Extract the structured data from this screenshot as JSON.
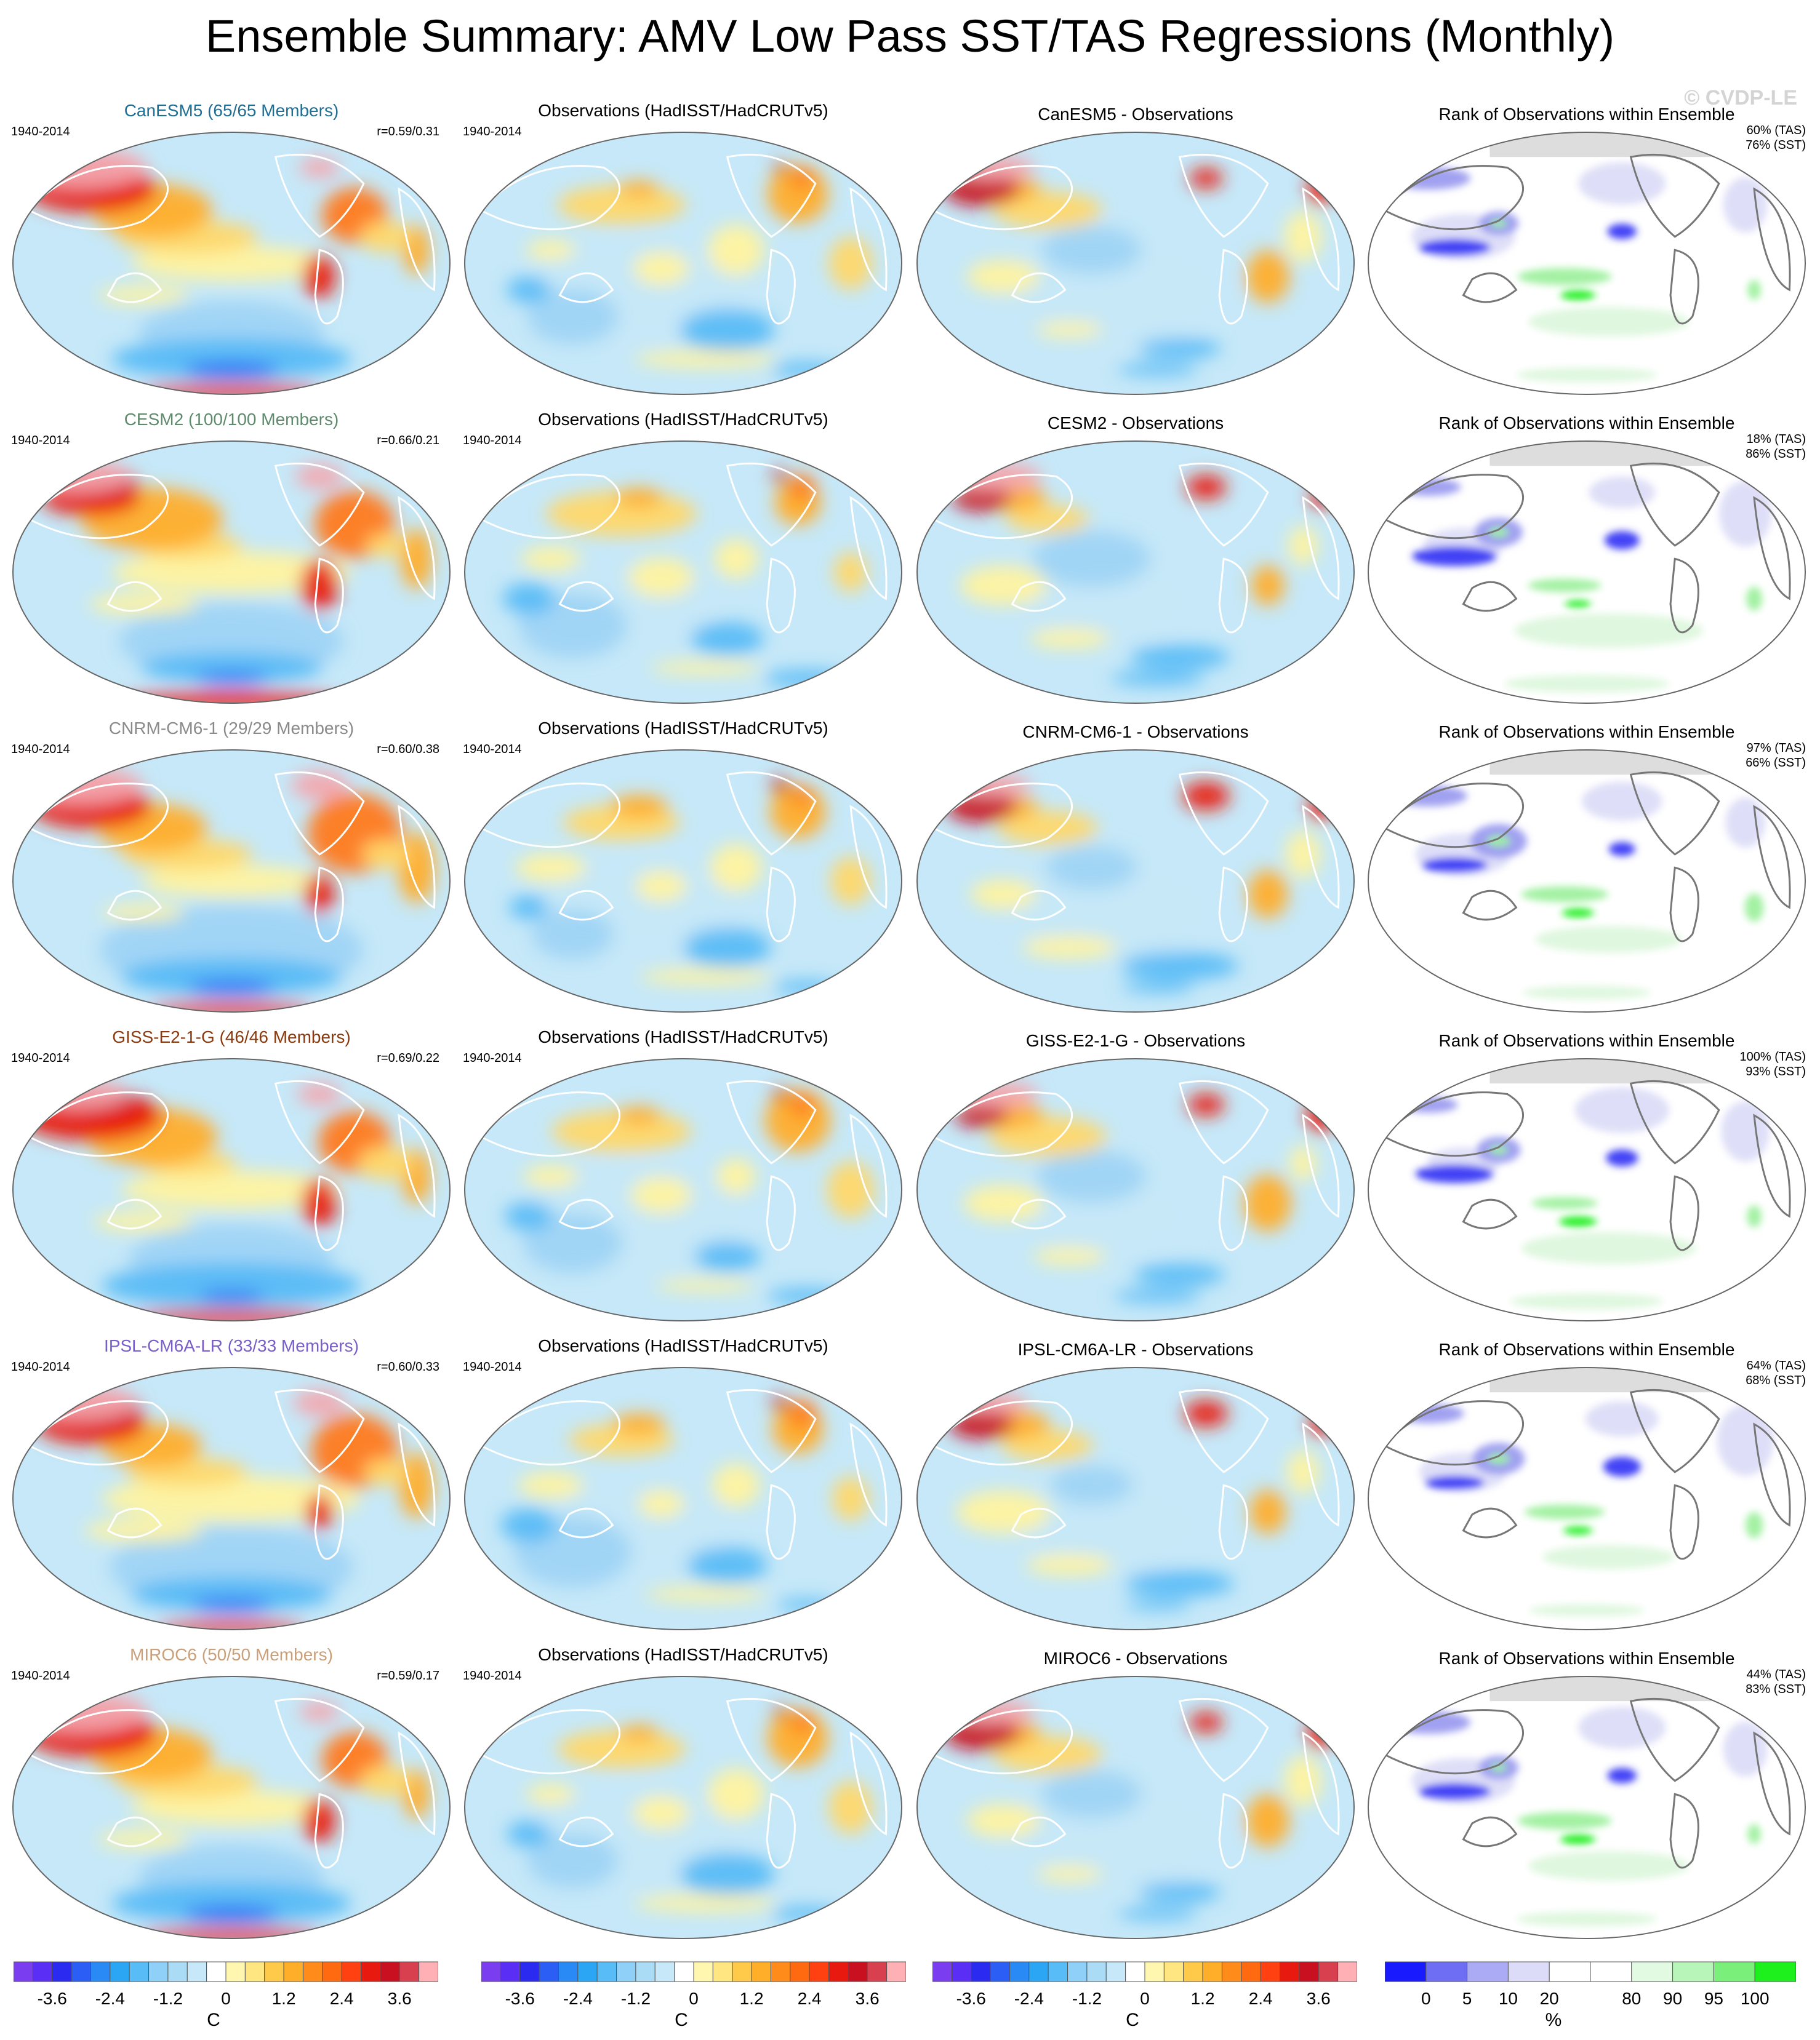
{
  "title": "Ensemble Summary: AMV Low Pass SST/TAS Regressions (Monthly)",
  "watermark": "© CVDP-LE",
  "rows": [
    {
      "model_title": "CanESM5 (65/65 Members)",
      "model_color": "#1f6e94",
      "period": "1940-2014",
      "corr": "r=0.59/0.31",
      "obs_title": "Observations (HadISST/HadCRUTv5)",
      "obs_period": "1940-2014",
      "diff_title": "CanESM5 - Observations",
      "rank_title": "Rank of Observations within Ensemble",
      "rank_tas": "60% (TAS)",
      "rank_sst": "76% (SST)"
    },
    {
      "model_title": "CESM2 (100/100 Members)",
      "model_color": "#5f8a6d",
      "period": "1940-2014",
      "corr": "r=0.66/0.21",
      "obs_title": "Observations (HadISST/HadCRUTv5)",
      "obs_period": "1940-2014",
      "diff_title": "CESM2 - Observations",
      "rank_title": "Rank of Observations within Ensemble",
      "rank_tas": "18% (TAS)",
      "rank_sst": "86% (SST)"
    },
    {
      "model_title": "CNRM-CM6-1 (29/29 Members)",
      "model_color": "#8a8a8a",
      "period": "1940-2014",
      "corr": "r=0.60/0.38",
      "obs_title": "Observations (HadISST/HadCRUTv5)",
      "obs_period": "1940-2014",
      "diff_title": "CNRM-CM6-1 - Observations",
      "rank_title": "Rank of Observations within Ensemble",
      "rank_tas": "97% (TAS)",
      "rank_sst": "66% (SST)"
    },
    {
      "model_title": "GISS-E2-1-G (46/46 Members)",
      "model_color": "#8b3a0e",
      "period": "1940-2014",
      "corr": "r=0.69/0.22",
      "obs_title": "Observations (HadISST/HadCRUTv5)",
      "obs_period": "1940-2014",
      "diff_title": "GISS-E2-1-G - Observations",
      "rank_title": "Rank of Observations within Ensemble",
      "rank_tas": "100% (TAS)",
      "rank_sst": "93% (SST)"
    },
    {
      "model_title": "IPSL-CM6A-LR (33/33 Members)",
      "model_color": "#7a5ec8",
      "period": "1940-2014",
      "corr": "r=0.60/0.33",
      "obs_title": "Observations (HadISST/HadCRUTv5)",
      "obs_period": "1940-2014",
      "diff_title": "IPSL-CM6A-LR - Observations",
      "rank_title": "Rank of Observations within Ensemble",
      "rank_tas": "64% (TAS)",
      "rank_sst": "68% (SST)"
    },
    {
      "model_title": "MIROC6 (50/50 Members)",
      "model_color": "#caa07a",
      "period": "1940-2014",
      "corr": "r=0.59/0.17",
      "obs_title": "Observations (HadISST/HadCRUTv5)",
      "obs_period": "1940-2014",
      "diff_title": "MIROC6 - Observations",
      "rank_title": "Rank of Observations within Ensemble",
      "rank_tas": "44% (TAS)",
      "rank_sst": "83% (SST)"
    }
  ],
  "colorbars": {
    "temp_units": "C",
    "temp_labels": [
      "-3.6",
      "-2.4",
      "-1.2",
      "0",
      "1.2",
      "2.4",
      "3.6"
    ],
    "temp_colors": [
      "#7a3ef0",
      "#5a2ef5",
      "#2a2af0",
      "#2a5ef5",
      "#2a8af5",
      "#2aa6f5",
      "#58bcf7",
      "#8ed0f7",
      "#aadcf5",
      "#c6e8f8",
      "#ffffff",
      "#fff7b0",
      "#ffe680",
      "#ffc94a",
      "#ffae2a",
      "#ff8c1a",
      "#ff6a10",
      "#ff4010",
      "#e81a10",
      "#c81020",
      "#d84050",
      "#ffb0b4"
    ],
    "rank_units": "%",
    "rank_labels": [
      "0",
      "5",
      "10",
      "20",
      "80",
      "90",
      "95",
      "100"
    ],
    "rank_colors": [
      "#1a1aff",
      "#6e6ef5",
      "#aaaaf5",
      "#dcdcf8",
      "#ffffff",
      "#ffffff",
      "#e2fae2",
      "#b8f5b8",
      "#7aef7a",
      "#1ef01e"
    ]
  },
  "chart_data": [
    {
      "type": "heatmap",
      "panel": "model regression",
      "units": "C",
      "color_levels": [
        -3.6,
        -2.4,
        -1.2,
        0,
        1.2,
        2.4,
        3.6
      ]
    },
    {
      "type": "heatmap",
      "panel": "observations",
      "units": "C",
      "color_levels": [
        -3.6,
        -2.4,
        -1.2,
        0,
        1.2,
        2.4,
        3.6
      ]
    },
    {
      "type": "heatmap",
      "panel": "model - observations",
      "units": "C",
      "color_levels": [
        -3.6,
        -2.4,
        -1.2,
        0,
        1.2,
        2.4,
        3.6
      ]
    },
    {
      "type": "heatmap",
      "panel": "rank of observations within ensemble",
      "units": "%",
      "color_levels": [
        0,
        5,
        10,
        20,
        80,
        90,
        95,
        100
      ]
    }
  ]
}
